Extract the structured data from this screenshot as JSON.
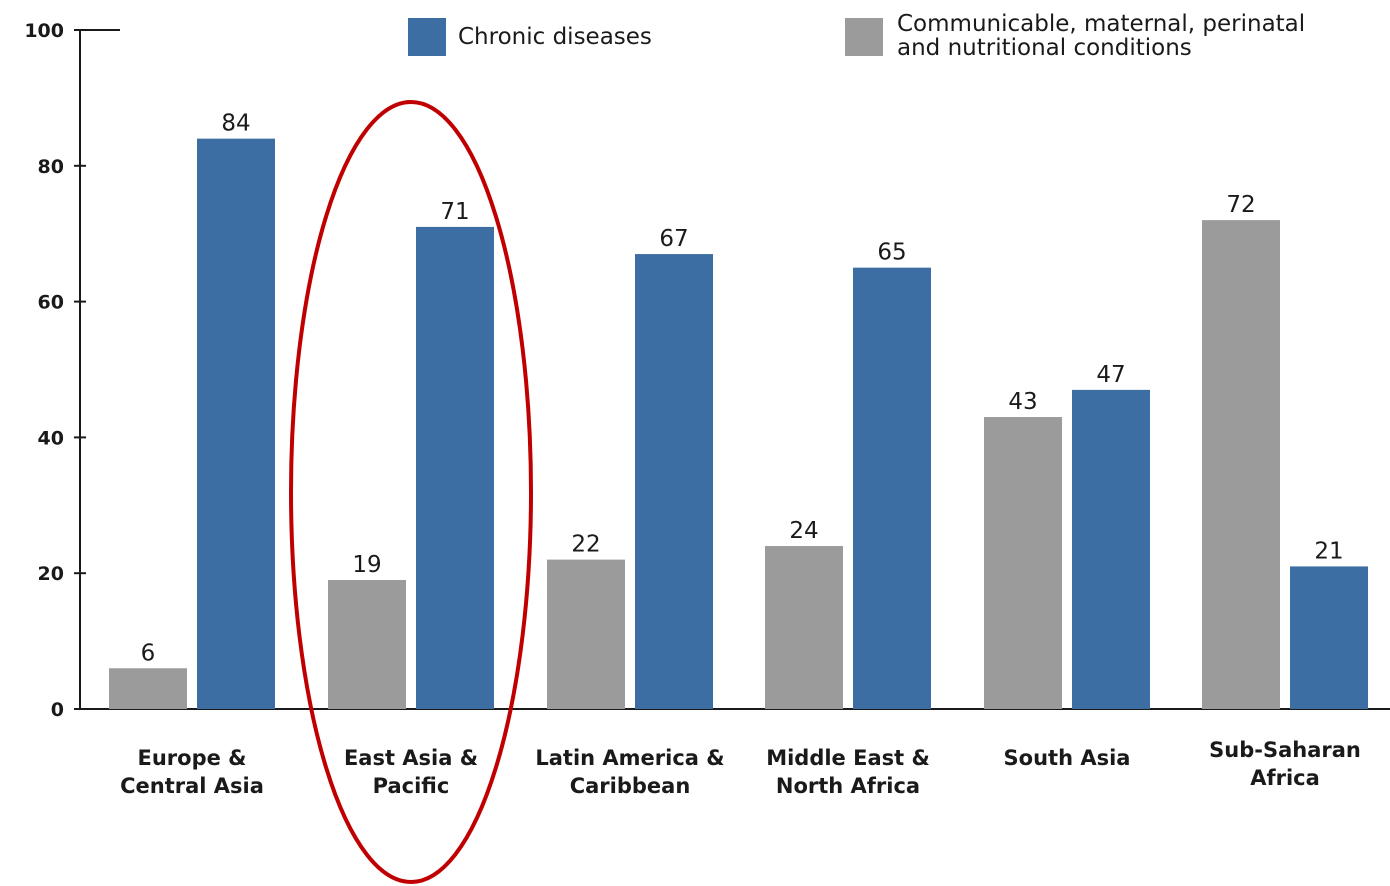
{
  "chart_data": {
    "type": "bar",
    "categories": [
      [
        "Europe &",
        "Central Asia"
      ],
      [
        "East Asia &",
        "Pacific"
      ],
      [
        "Latin America &",
        "Caribbean"
      ],
      [
        "Middle East &",
        "North Africa"
      ],
      [
        "South Asia"
      ],
      [
        "Sub-Saharan",
        "Africa"
      ]
    ],
    "series": [
      {
        "name": [
          "Communicable, maternal, perinatal",
          "and nutritional conditions"
        ],
        "color": "#9b9b9b",
        "values": [
          6,
          19,
          22,
          24,
          43,
          72
        ]
      },
      {
        "name": [
          "Chronic diseases"
        ],
        "color": "#3d6ea3",
        "values": [
          84,
          71,
          67,
          65,
          47,
          21
        ]
      }
    ],
    "y_ticks": [
      "0",
      "20",
      "40",
      "60",
      "80",
      "100"
    ],
    "ylim": [
      0,
      100
    ],
    "grid": false,
    "legend": "top",
    "highlight": {
      "category_index": 1,
      "shape": "ellipse",
      "color": "#c00000"
    }
  }
}
